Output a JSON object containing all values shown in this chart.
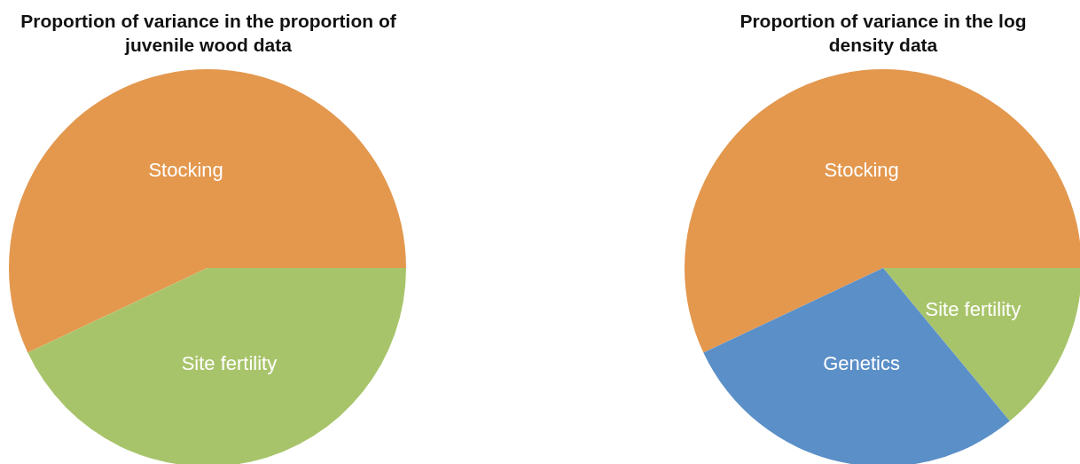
{
  "chart_data": [
    {
      "type": "pie",
      "title": "Proportion of variance in the proportion of juvenile wood data",
      "categories": [
        "Stocking",
        "Site fertility"
      ],
      "values": [
        57,
        43
      ],
      "colors": [
        "#e3984e",
        "#a8c46a"
      ],
      "legend": false
    },
    {
      "type": "pie",
      "title": "Proportion of variance in the log density data",
      "categories": [
        "Stocking",
        "Site fertility",
        "Genetics"
      ],
      "values": [
        57,
        14,
        29
      ],
      "colors": [
        "#e3984e",
        "#a8c46a",
        "#5b8fc7"
      ],
      "legend": false
    }
  ]
}
